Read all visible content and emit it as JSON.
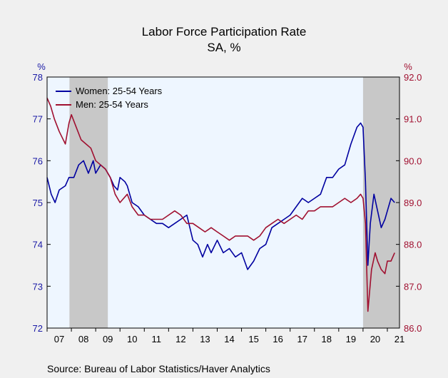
{
  "chart_data": {
    "type": "line",
    "title": "Labor Force Participation Rate",
    "subtitle": "SA, %",
    "left_unit": "%",
    "right_unit": "%",
    "left_axis": {
      "min": 72,
      "max": 78,
      "ticks": [
        "72",
        "73",
        "74",
        "75",
        "76",
        "77",
        "78"
      ]
    },
    "right_axis": {
      "min": 86,
      "max": 92,
      "ticks": [
        "86.0",
        "87.0",
        "88.0",
        "89.0",
        "90.0",
        "91.0",
        "92.0"
      ]
    },
    "x_range": [
      2007,
      2021.5
    ],
    "x_ticks": [
      "07",
      "08",
      "09",
      "10",
      "11",
      "12",
      "13",
      "14",
      "15",
      "16",
      "17",
      "18",
      "19",
      "20",
      "21"
    ],
    "recessions": [
      [
        2007.92,
        2009.5
      ],
      [
        2020.0,
        2021.5
      ]
    ],
    "grid": false,
    "legend_position": "top-left",
    "source": "Source:  Bureau of Labor Statistics/Haver Analytics",
    "series": [
      {
        "name": "Women: 25-54 Years",
        "axis": "left",
        "color": "#0000a0",
        "points": [
          [
            2007.0,
            75.6
          ],
          [
            2007.17,
            75.2
          ],
          [
            2007.33,
            75.0
          ],
          [
            2007.5,
            75.3
          ],
          [
            2007.75,
            75.4
          ],
          [
            2007.9,
            75.6
          ],
          [
            2008.1,
            75.6
          ],
          [
            2008.3,
            75.9
          ],
          [
            2008.5,
            76.0
          ],
          [
            2008.7,
            75.7
          ],
          [
            2008.9,
            76.0
          ],
          [
            2009.0,
            75.7
          ],
          [
            2009.2,
            75.9
          ],
          [
            2009.4,
            75.8
          ],
          [
            2009.6,
            75.6
          ],
          [
            2009.75,
            75.4
          ],
          [
            2009.9,
            75.3
          ],
          [
            2010.0,
            75.6
          ],
          [
            2010.2,
            75.5
          ],
          [
            2010.3,
            75.4
          ],
          [
            2010.5,
            75.0
          ],
          [
            2010.75,
            74.9
          ],
          [
            2011.0,
            74.7
          ],
          [
            2011.25,
            74.6
          ],
          [
            2011.5,
            74.5
          ],
          [
            2011.75,
            74.5
          ],
          [
            2012.0,
            74.4
          ],
          [
            2012.25,
            74.5
          ],
          [
            2012.5,
            74.6
          ],
          [
            2012.75,
            74.7
          ],
          [
            2013.0,
            74.1
          ],
          [
            2013.2,
            74.0
          ],
          [
            2013.4,
            73.7
          ],
          [
            2013.6,
            74.0
          ],
          [
            2013.75,
            73.8
          ],
          [
            2014.0,
            74.1
          ],
          [
            2014.25,
            73.8
          ],
          [
            2014.5,
            73.9
          ],
          [
            2014.75,
            73.7
          ],
          [
            2015.0,
            73.8
          ],
          [
            2015.25,
            73.4
          ],
          [
            2015.5,
            73.6
          ],
          [
            2015.75,
            73.9
          ],
          [
            2016.0,
            74.0
          ],
          [
            2016.25,
            74.4
          ],
          [
            2016.5,
            74.5
          ],
          [
            2016.75,
            74.6
          ],
          [
            2017.0,
            74.7
          ],
          [
            2017.25,
            74.9
          ],
          [
            2017.5,
            75.1
          ],
          [
            2017.75,
            75.0
          ],
          [
            2018.0,
            75.1
          ],
          [
            2018.25,
            75.2
          ],
          [
            2018.5,
            75.6
          ],
          [
            2018.75,
            75.6
          ],
          [
            2019.0,
            75.8
          ],
          [
            2019.25,
            75.9
          ],
          [
            2019.5,
            76.4
          ],
          [
            2019.75,
            76.8
          ],
          [
            2019.9,
            76.9
          ],
          [
            2020.0,
            76.8
          ],
          [
            2020.1,
            75.5
          ],
          [
            2020.2,
            73.5
          ],
          [
            2020.3,
            74.5
          ],
          [
            2020.45,
            75.2
          ],
          [
            2020.6,
            74.8
          ],
          [
            2020.75,
            74.4
          ],
          [
            2020.9,
            74.6
          ],
          [
            2021.0,
            74.8
          ],
          [
            2021.15,
            75.1
          ],
          [
            2021.3,
            75.0
          ]
        ]
      },
      {
        "name": "Men: 25-54 Years",
        "axis": "right",
        "color": "#a01030",
        "points": [
          [
            2007.0,
            91.5
          ],
          [
            2007.15,
            91.3
          ],
          [
            2007.3,
            91.0
          ],
          [
            2007.5,
            90.7
          ],
          [
            2007.75,
            90.4
          ],
          [
            2007.9,
            90.9
          ],
          [
            2008.0,
            91.1
          ],
          [
            2008.2,
            90.8
          ],
          [
            2008.4,
            90.5
          ],
          [
            2008.6,
            90.4
          ],
          [
            2008.8,
            90.3
          ],
          [
            2009.0,
            90.0
          ],
          [
            2009.2,
            89.9
          ],
          [
            2009.4,
            89.8
          ],
          [
            2009.6,
            89.6
          ],
          [
            2009.8,
            89.2
          ],
          [
            2010.0,
            89.0
          ],
          [
            2010.3,
            89.2
          ],
          [
            2010.5,
            88.9
          ],
          [
            2010.75,
            88.7
          ],
          [
            2011.0,
            88.7
          ],
          [
            2011.25,
            88.6
          ],
          [
            2011.5,
            88.6
          ],
          [
            2011.75,
            88.6
          ],
          [
            2012.0,
            88.7
          ],
          [
            2012.25,
            88.8
          ],
          [
            2012.5,
            88.7
          ],
          [
            2012.75,
            88.5
          ],
          [
            2013.0,
            88.5
          ],
          [
            2013.25,
            88.4
          ],
          [
            2013.5,
            88.3
          ],
          [
            2013.75,
            88.4
          ],
          [
            2014.0,
            88.3
          ],
          [
            2014.25,
            88.2
          ],
          [
            2014.5,
            88.1
          ],
          [
            2014.75,
            88.2
          ],
          [
            2015.0,
            88.2
          ],
          [
            2015.25,
            88.2
          ],
          [
            2015.5,
            88.1
          ],
          [
            2015.75,
            88.2
          ],
          [
            2016.0,
            88.4
          ],
          [
            2016.25,
            88.5
          ],
          [
            2016.5,
            88.6
          ],
          [
            2016.75,
            88.5
          ],
          [
            2017.0,
            88.6
          ],
          [
            2017.25,
            88.7
          ],
          [
            2017.5,
            88.6
          ],
          [
            2017.75,
            88.8
          ],
          [
            2018.0,
            88.8
          ],
          [
            2018.25,
            88.9
          ],
          [
            2018.5,
            88.9
          ],
          [
            2018.75,
            88.9
          ],
          [
            2019.0,
            89.0
          ],
          [
            2019.25,
            89.1
          ],
          [
            2019.5,
            89.0
          ],
          [
            2019.75,
            89.1
          ],
          [
            2019.9,
            89.2
          ],
          [
            2020.0,
            89.1
          ],
          [
            2020.1,
            88.5
          ],
          [
            2020.2,
            86.4
          ],
          [
            2020.35,
            87.4
          ],
          [
            2020.5,
            87.8
          ],
          [
            2020.6,
            87.6
          ],
          [
            2020.75,
            87.4
          ],
          [
            2020.9,
            87.3
          ],
          [
            2021.0,
            87.6
          ],
          [
            2021.15,
            87.6
          ],
          [
            2021.3,
            87.8
          ]
        ]
      }
    ]
  }
}
